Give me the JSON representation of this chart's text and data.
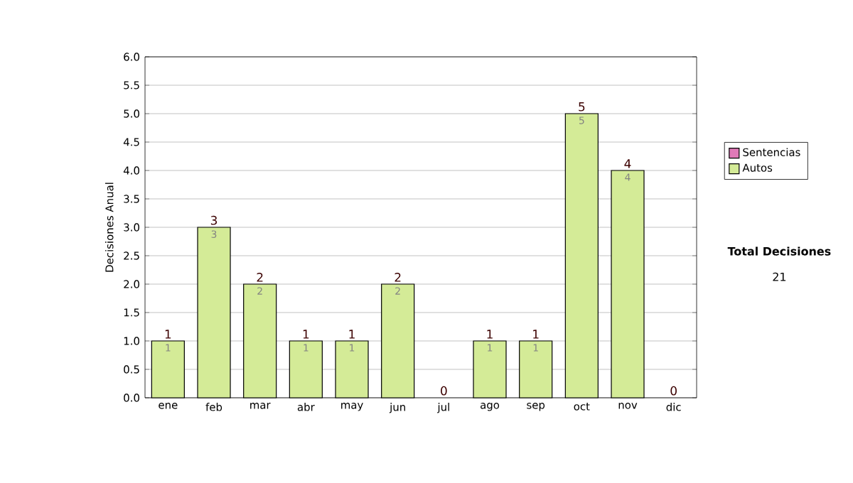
{
  "chart_data": {
    "type": "bar",
    "stacked": true,
    "ylabel": "Decisiones Anual",
    "categories": [
      "ene",
      "feb",
      "mar",
      "abr",
      "may",
      "jun",
      "jul",
      "ago",
      "sep",
      "oct",
      "nov",
      "dic"
    ],
    "series": [
      {
        "name": "Sentencias",
        "color": "#e07ab8",
        "values": [
          0,
          0,
          0,
          0,
          0,
          0,
          0,
          0,
          0,
          0,
          0,
          0
        ]
      },
      {
        "name": "Autos",
        "color": "#d4eb97",
        "values": [
          1,
          3,
          2,
          1,
          1,
          2,
          0,
          1,
          1,
          5,
          4,
          0
        ],
        "value_labels": [
          "1",
          "3",
          "2",
          "1",
          "1",
          "2",
          null,
          "1",
          "1",
          "5",
          "4",
          null
        ]
      }
    ],
    "totals": [
      "1",
      "3",
      "2",
      "1",
      "1",
      "2",
      "0",
      "1",
      "1",
      "5",
      "4",
      "0"
    ],
    "ylim": [
      0,
      6
    ],
    "yticks": [
      {
        "value": 0,
        "label": "0.0"
      },
      {
        "value": 0.5,
        "label": "0.5"
      },
      {
        "value": 1,
        "label": "1.0"
      },
      {
        "value": 1.5,
        "label": "1.5"
      },
      {
        "value": 2,
        "label": "2.0"
      },
      {
        "value": 2.5,
        "label": "2.5"
      },
      {
        "value": 3,
        "label": "3.0"
      },
      {
        "value": 3.5,
        "label": "3.5"
      },
      {
        "value": 4,
        "label": "4.0"
      },
      {
        "value": 4.5,
        "label": "4.5"
      },
      {
        "value": 5,
        "label": "5.0"
      },
      {
        "value": 5.5,
        "label": "5.5"
      },
      {
        "value": 6,
        "label": "6.0"
      }
    ],
    "grid": "y",
    "legend": "right",
    "annotations": [
      "**Total Decisiones**",
      "21"
    ]
  }
}
